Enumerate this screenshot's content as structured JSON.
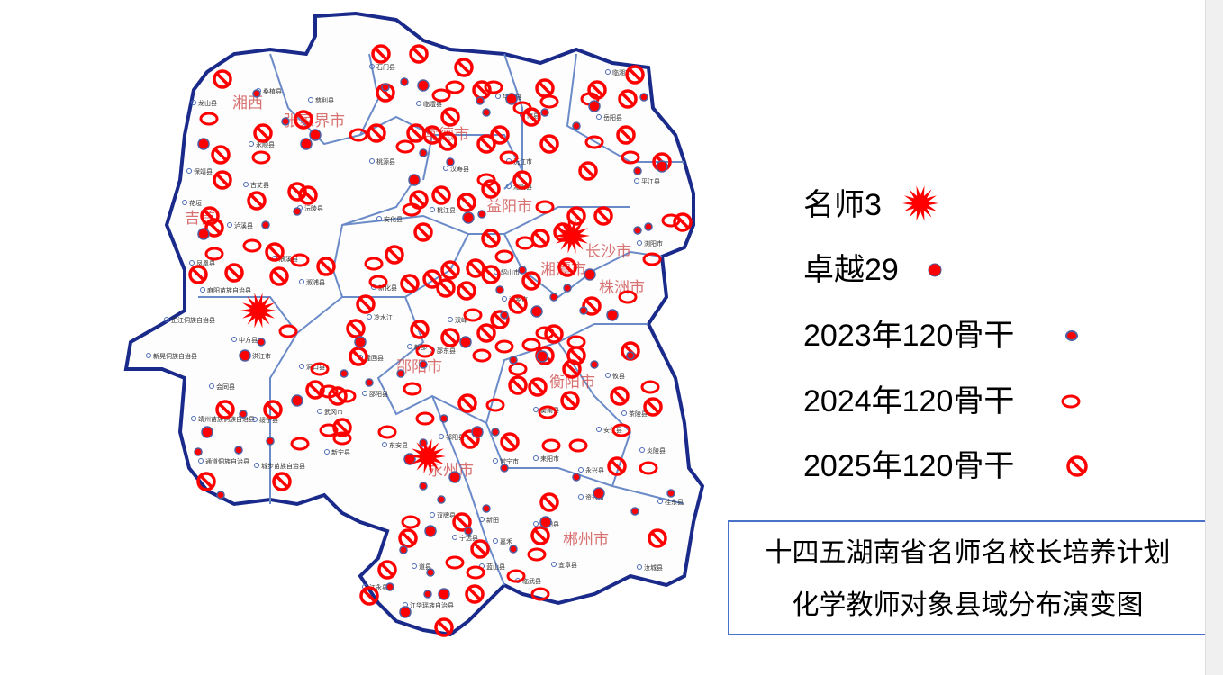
{
  "legend": {
    "items": [
      {
        "label": "名师3",
        "symbol": "star-burst",
        "color": "#ff0000"
      },
      {
        "label": "卓越29",
        "symbol": "filled-dot",
        "color": "#ff0000"
      },
      {
        "label": "2023年120骨干",
        "symbol": "small-dot",
        "color": "#ff0000"
      },
      {
        "label": "2024年120骨干",
        "symbol": "ring",
        "color": "#ff0000"
      },
      {
        "label": "2025年120骨干",
        "symbol": "prohibited-circle",
        "color": "#ff0000"
      }
    ]
  },
  "title": {
    "line1": "十四五湖南省名师名校长培养计划",
    "line2": "化学教师对象县域分布演变图"
  },
  "map": {
    "border_color": "#1a2a8a",
    "city_labels": [
      "湘西土家族自治州",
      "张家界市",
      "常德市",
      "益阳市",
      "长沙市",
      "株洲市",
      "湘潭市",
      "邵阳市",
      "衡阳市",
      "郴州市",
      "永州市",
      "吉首"
    ],
    "county_labels": [
      "龙山县",
      "桑植县",
      "慈利县",
      "石门县",
      "临澧县",
      "南县",
      "华容县",
      "临湘市",
      "岳阳县",
      "永顺县",
      "保靖县",
      "古丈县",
      "花垣",
      "泸溪县",
      "沅陵县",
      "桃源县",
      "汉寿县",
      "沅江市",
      "湘阴县",
      "平江县",
      "安化县",
      "桃江县",
      "浏阳市",
      "韶山市",
      "湘乡市",
      "凤凰县",
      "麻阳苗族自治县",
      "辰溪县",
      "溆浦县",
      "新化县",
      "冷水江",
      "双峰",
      "邵东县",
      "隆回县",
      "洞口县",
      "邵阳县",
      "武冈市",
      "新邵",
      "芷江侗族自治县",
      "中方县",
      "洪江市",
      "新晃侗族自治县",
      "会同县",
      "靖州苗族侗族自治县",
      "绥宁县",
      "通道侗族自治县",
      "城步苗族自治县",
      "新宁县",
      "东安县",
      "祁阳县",
      "衡南县",
      "常宁市",
      "耒阳市",
      "安仁县",
      "攸县",
      "茶陵县",
      "炎陵县",
      "永兴县",
      "资兴市",
      "桂东县",
      "汝城县",
      "宜章县",
      "临武县",
      "嘉禾",
      "桂阳县",
      "新田",
      "宁远县",
      "蓝山县",
      "道县",
      "江永县",
      "江华瑶族自治县",
      "双牌县"
    ]
  }
}
